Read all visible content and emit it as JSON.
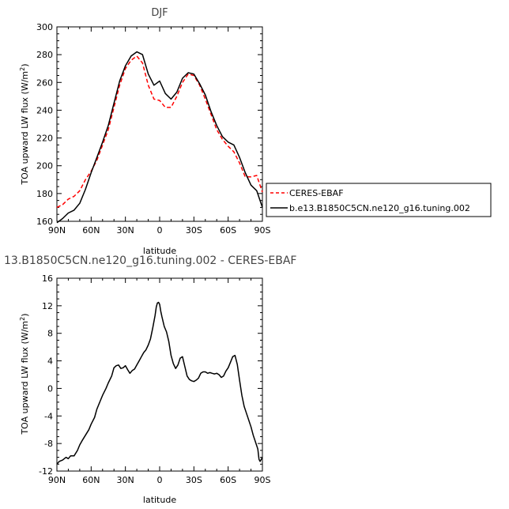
{
  "chart_data": [
    {
      "type": "line",
      "title": "DJF",
      "xlabel": "latitude",
      "ylabel": "TOA upward LW flux (W/m",
      "ylabel_sup": "2",
      "ylabel_close": ")",
      "xlim": [
        90,
        -90
      ],
      "ylim": [
        160,
        300
      ],
      "xticks": [
        90,
        60,
        30,
        0,
        -30,
        -60,
        -90
      ],
      "xtick_labels": [
        "90N",
        "60N",
        "30N",
        "0",
        "30S",
        "60S",
        "90S"
      ],
      "yticks": [
        160,
        180,
        200,
        220,
        240,
        260,
        280,
        300
      ],
      "ytick_labels": [
        "160",
        "180",
        "200",
        "220",
        "240",
        "260",
        "280",
        "300"
      ],
      "legend": "outside-right",
      "series": [
        {
          "name": "CERES-EBAF",
          "color": "#ff0000",
          "dash": "dashed",
          "x": [
            90,
            85,
            80,
            75,
            70,
            65,
            60,
            55,
            50,
            45,
            40,
            35,
            30,
            25,
            20,
            15,
            10,
            5,
            0,
            -5,
            -10,
            -15,
            -20,
            -25,
            -30,
            -35,
            -40,
            -45,
            -50,
            -55,
            -60,
            -65,
            -70,
            -75,
            -80,
            -85,
            -90
          ],
          "y": [
            170,
            172,
            176,
            178,
            182,
            190,
            196,
            204,
            215,
            226,
            242,
            258,
            270,
            276,
            279,
            274,
            258,
            248,
            247,
            242,
            242,
            250,
            260,
            266,
            265,
            258,
            248,
            237,
            226,
            219,
            214,
            210,
            202,
            192,
            192,
            193,
            181
          ]
        },
        {
          "name": "b.e13.B1850C5CN.ne120_g16.tuning.002",
          "color": "#000000",
          "dash": "solid",
          "x": [
            90,
            85,
            80,
            75,
            70,
            65,
            60,
            55,
            50,
            45,
            40,
            35,
            30,
            25,
            20,
            15,
            10,
            5,
            0,
            -5,
            -10,
            -15,
            -20,
            -25,
            -30,
            -35,
            -40,
            -45,
            -50,
            -55,
            -60,
            -65,
            -70,
            -75,
            -80,
            -85,
            -90
          ],
          "y": [
            159,
            162,
            166,
            168,
            173,
            183,
            195,
            206,
            217,
            229,
            245,
            261,
            272,
            279,
            282,
            280,
            266,
            258,
            261,
            252,
            248,
            253,
            263,
            267,
            266,
            259,
            251,
            239,
            229,
            221,
            217,
            215,
            206,
            195,
            186,
            182,
            170
          ]
        }
      ]
    },
    {
      "type": "line",
      "title": "13.B1850C5CN.ne120_g16.tuning.002 - CERES-EBAF",
      "xlabel": "latitude",
      "ylabel": "TOA upward LW flux (W/m",
      "ylabel_sup": "2",
      "ylabel_close": ")",
      "xlim": [
        90,
        -90
      ],
      "ylim": [
        -12,
        16
      ],
      "xticks": [
        90,
        60,
        30,
        0,
        -30,
        -60,
        -90
      ],
      "xtick_labels": [
        "90N",
        "60N",
        "30N",
        "0",
        "30S",
        "60S",
        "90S"
      ],
      "yticks": [
        -12,
        -8,
        -4,
        0,
        4,
        8,
        12,
        16
      ],
      "ytick_labels": [
        "-12",
        "-8",
        "-4",
        "0",
        "4",
        "8",
        "12",
        "16"
      ],
      "series": [
        {
          "name": "",
          "color": "#000000",
          "dash": "solid",
          "x": [
            90,
            88,
            85,
            82,
            80,
            78,
            75,
            72,
            70,
            68,
            65,
            62,
            60,
            57,
            55,
            52,
            50,
            47,
            45,
            42,
            40,
            38,
            36,
            34,
            32,
            30,
            28,
            26,
            24,
            22,
            20,
            18,
            16,
            14,
            12,
            10,
            8,
            6,
            4,
            3,
            2,
            1,
            0,
            -1,
            -2,
            -4,
            -6,
            -8,
            -10,
            -12,
            -14,
            -16,
            -18,
            -20,
            -22,
            -24,
            -26,
            -28,
            -30,
            -32,
            -34,
            -36,
            -38,
            -40,
            -42,
            -44,
            -46,
            -48,
            -50,
            -52,
            -54,
            -56,
            -58,
            -60,
            -62,
            -64,
            -66,
            -68,
            -70,
            -72,
            -74,
            -76,
            -78,
            -80,
            -82,
            -84,
            -86,
            -87,
            -88,
            -90
          ],
          "y": [
            -11,
            -10.6,
            -10.4,
            -10.0,
            -10.2,
            -9.8,
            -9.8,
            -9.0,
            -8.2,
            -7.6,
            -6.8,
            -6.0,
            -5.2,
            -4.2,
            -3.0,
            -1.8,
            -1.0,
            0.0,
            0.8,
            1.8,
            3.0,
            3.3,
            3.4,
            2.9,
            3.0,
            3.3,
            2.7,
            2.2,
            2.6,
            2.8,
            3.4,
            4.0,
            4.6,
            5.2,
            5.6,
            6.3,
            7.2,
            8.8,
            10.6,
            11.8,
            12.4,
            12.5,
            12.2,
            11.2,
            10.4,
            9.0,
            8.2,
            6.8,
            4.8,
            3.6,
            2.9,
            3.4,
            4.4,
            4.6,
            3.2,
            1.8,
            1.3,
            1.1,
            1.0,
            1.2,
            1.5,
            2.2,
            2.4,
            2.4,
            2.2,
            2.3,
            2.2,
            2.1,
            2.2,
            2.0,
            1.6,
            1.8,
            2.5,
            3.0,
            3.8,
            4.6,
            4.8,
            3.5,
            1.2,
            -1.0,
            -2.6,
            -3.6,
            -4.6,
            -5.6,
            -6.8,
            -7.8,
            -8.8,
            -10.3,
            -10.6,
            -10.0
          ]
        }
      ]
    }
  ]
}
